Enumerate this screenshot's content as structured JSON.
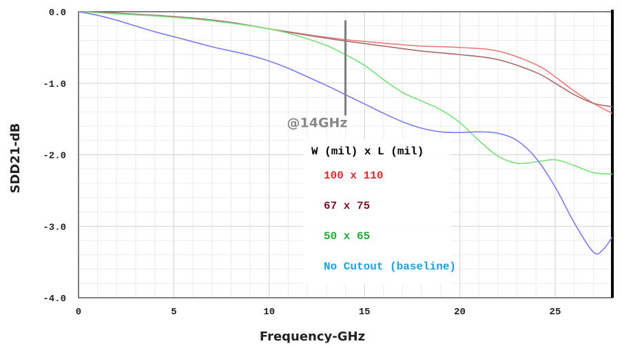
{
  "chart_data": {
    "type": "line",
    "title": "",
    "xlabel": "Frequency-GHz",
    "ylabel": "SDD21-dB",
    "xlim": [
      0,
      28
    ],
    "ylim": [
      -4.0,
      0.0
    ],
    "x_ticks": [
      0,
      5,
      10,
      15,
      20,
      25
    ],
    "x_tick_labels": [
      "0",
      "5",
      "10",
      "15",
      "20",
      "25"
    ],
    "y_ticks": [
      0.0,
      -1.0,
      -2.0,
      -3.0,
      -4.0
    ],
    "y_tick_labels": [
      "0.0",
      "-1.0",
      "-2.0",
      "-3.0",
      "-4.0"
    ],
    "grid": true,
    "legend_title": "W (mil) x L (mil)",
    "legend_position": "center",
    "annotation": {
      "label": "@14GHz",
      "x": 14,
      "y_top": -0.12,
      "y_bottom": -1.45
    },
    "series": [
      {
        "name": "100 x 110",
        "color": "#f07878",
        "legend_color": "#d92b2b",
        "x": [
          0,
          2,
          4,
          6,
          8,
          10,
          12,
          14,
          16,
          18,
          20,
          22,
          24,
          25,
          26,
          27,
          28
        ],
        "y": [
          0,
          -0.02,
          -0.05,
          -0.09,
          -0.15,
          -0.24,
          -0.32,
          -0.39,
          -0.44,
          -0.48,
          -0.5,
          -0.55,
          -0.74,
          -0.91,
          -1.11,
          -1.28,
          -1.42
        ]
      },
      {
        "name": "67  x 75",
        "color": "#a86a6a",
        "legend_color": "#7a1426",
        "x": [
          0,
          2,
          4,
          6,
          8,
          10,
          12,
          14,
          16,
          18,
          20,
          22,
          24,
          25,
          26,
          27,
          28
        ],
        "y": [
          0,
          -0.02,
          -0.05,
          -0.09,
          -0.15,
          -0.24,
          -0.33,
          -0.41,
          -0.48,
          -0.55,
          -0.6,
          -0.67,
          -0.85,
          -1.0,
          -1.16,
          -1.28,
          -1.33
        ]
      },
      {
        "name": "50  x 65",
        "color": "#78e078",
        "legend_color": "#22a834",
        "x": [
          0,
          2,
          4,
          6,
          8,
          10,
          11,
          12,
          13,
          14,
          15,
          16,
          17,
          18,
          19,
          20,
          21,
          22,
          23,
          24,
          25,
          26,
          27,
          28
        ],
        "y": [
          0,
          -0.03,
          -0.06,
          -0.1,
          -0.16,
          -0.24,
          -0.3,
          -0.38,
          -0.47,
          -0.6,
          -0.75,
          -0.95,
          -1.13,
          -1.25,
          -1.37,
          -1.55,
          -1.8,
          -2.02,
          -2.12,
          -2.1,
          -2.07,
          -2.15,
          -2.25,
          -2.27
        ]
      },
      {
        "name": "No Cutout (baseline)",
        "color": "#7b7bef",
        "legend_color": "#1aa0e6",
        "x": [
          0,
          1,
          2,
          3,
          4,
          5,
          6,
          7,
          8,
          9,
          10,
          11,
          12,
          13,
          14,
          15,
          16,
          17,
          18,
          19,
          20,
          21,
          22,
          23,
          24,
          25,
          26,
          27,
          27.5,
          28
        ],
        "y": [
          0,
          -0.05,
          -0.12,
          -0.2,
          -0.28,
          -0.35,
          -0.42,
          -0.49,
          -0.55,
          -0.61,
          -0.69,
          -0.79,
          -0.91,
          -1.03,
          -1.16,
          -1.29,
          -1.42,
          -1.54,
          -1.63,
          -1.68,
          -1.69,
          -1.68,
          -1.7,
          -1.8,
          -2.05,
          -2.45,
          -2.95,
          -3.36,
          -3.33,
          -3.15
        ]
      }
    ]
  }
}
